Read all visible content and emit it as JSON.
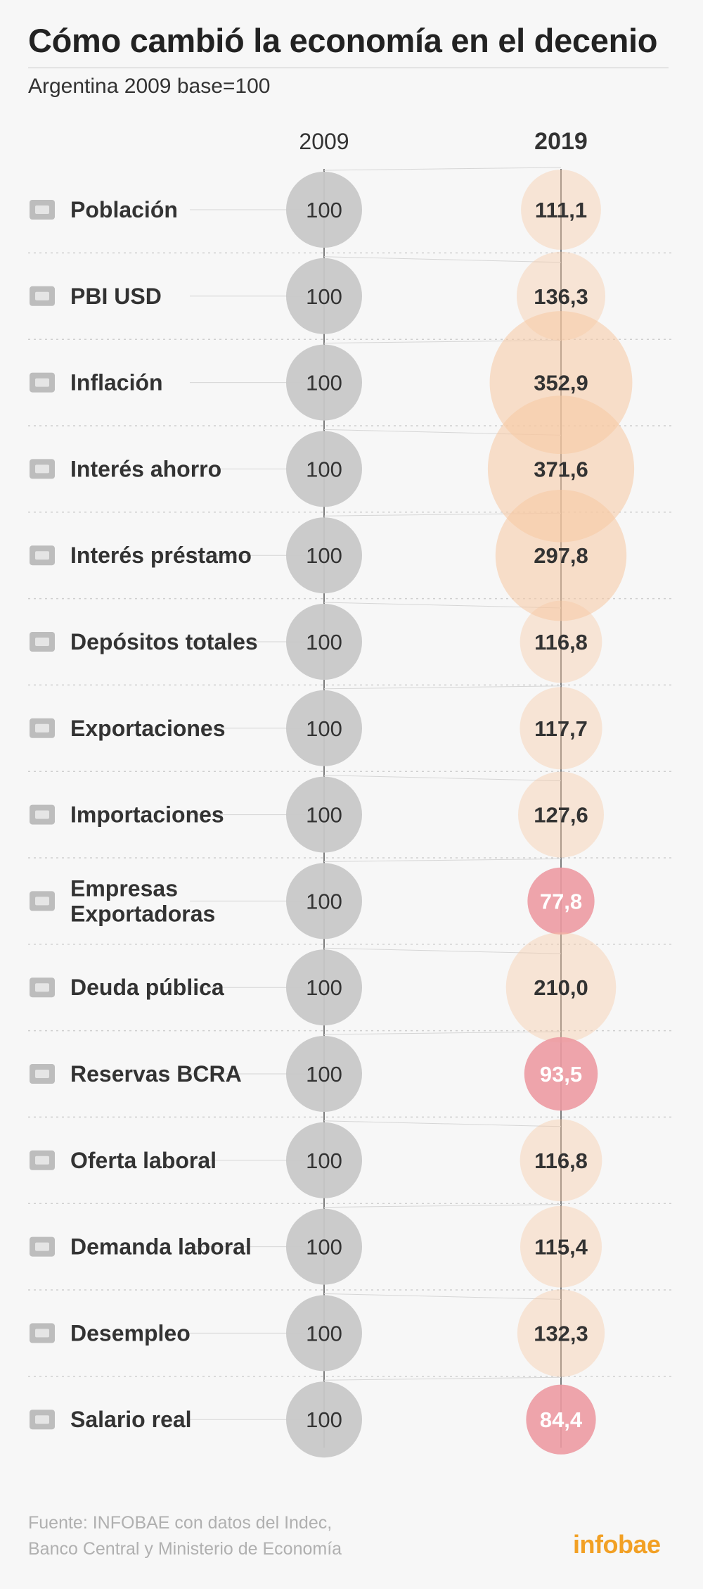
{
  "title": "Cómo cambió  la economía en el decenio",
  "subtitle": "Argentina 2009 base=100",
  "source": {
    "line1": "Fuente: INFOBAE con datos del Indec,",
    "line2": "Banco Central y Ministerio de Economía"
  },
  "brand": "infobae",
  "colors": {
    "circle_2009": "#c8c8c8",
    "growth": "#f7c9a3",
    "decline": "#ec9aa2",
    "icon": "#bdbdbd",
    "label": "#333333"
  },
  "chart_data": {
    "type": "bubble-comparison",
    "title": "Cómo cambió  la economía en el decenio",
    "subtitle": "Argentina 2009 base=100",
    "column_labels": [
      "2009",
      "2019"
    ],
    "categories": [
      "Población",
      "PBI USD",
      "Inflación",
      "Interés ahorro",
      "Interés préstamo",
      "Depósitos totales",
      "Exportaciones",
      "Importaciones",
      "Empresas Exportadoras",
      "Deuda pública",
      "Reservas BCRA",
      "Oferta laboral",
      "Demanda laboral",
      "Desempleo",
      "Salario real"
    ],
    "label_lines": [
      [
        "Población"
      ],
      [
        "PBI USD"
      ],
      [
        "Inflación"
      ],
      [
        "Interés ahorro"
      ],
      [
        "Interés préstamo"
      ],
      [
        "Depósitos totales"
      ],
      [
        "Exportaciones"
      ],
      [
        "Importaciones"
      ],
      [
        "Empresas",
        "Exportadoras"
      ],
      [
        "Deuda pública"
      ],
      [
        "Reservas BCRA"
      ],
      [
        "Oferta laboral"
      ],
      [
        "Demanda laboral"
      ],
      [
        "Desempleo"
      ],
      [
        "Salario real"
      ]
    ],
    "icons": [
      "population-icon",
      "money-bag-icon",
      "line-chart-icon",
      "piggy-bank-icon",
      "percent-house-icon",
      "bank-deposit-icon",
      "export-icon",
      "import-icon",
      "buildings-icon",
      "public-debt-icon",
      "central-bank-icon",
      "job-offer-icon",
      "factory-icon",
      "unemployed-people-icon",
      "salary-envelope-icon"
    ],
    "series": [
      {
        "name": "2009",
        "values": [
          100,
          100,
          100,
          100,
          100,
          100,
          100,
          100,
          100,
          100,
          100,
          100,
          100,
          100,
          100
        ],
        "labels": [
          "100",
          "100",
          "100",
          "100",
          "100",
          "100",
          "100",
          "100",
          "100",
          "100",
          "100",
          "100",
          "100",
          "100",
          "100"
        ]
      },
      {
        "name": "2019",
        "values": [
          111.1,
          136.3,
          352.9,
          371.6,
          297.8,
          116.8,
          117.7,
          127.6,
          77.8,
          210.0,
          93.5,
          116.8,
          115.4,
          132.3,
          84.4
        ],
        "labels": [
          "111,1",
          "136,3",
          "352,9",
          "371,6",
          "297,8",
          "116,8",
          "117,7",
          "127,6",
          "77,8",
          "210,0",
          "93,5",
          "116,8",
          "115,4",
          "132,3",
          "84,4"
        ]
      }
    ],
    "base": 100
  }
}
